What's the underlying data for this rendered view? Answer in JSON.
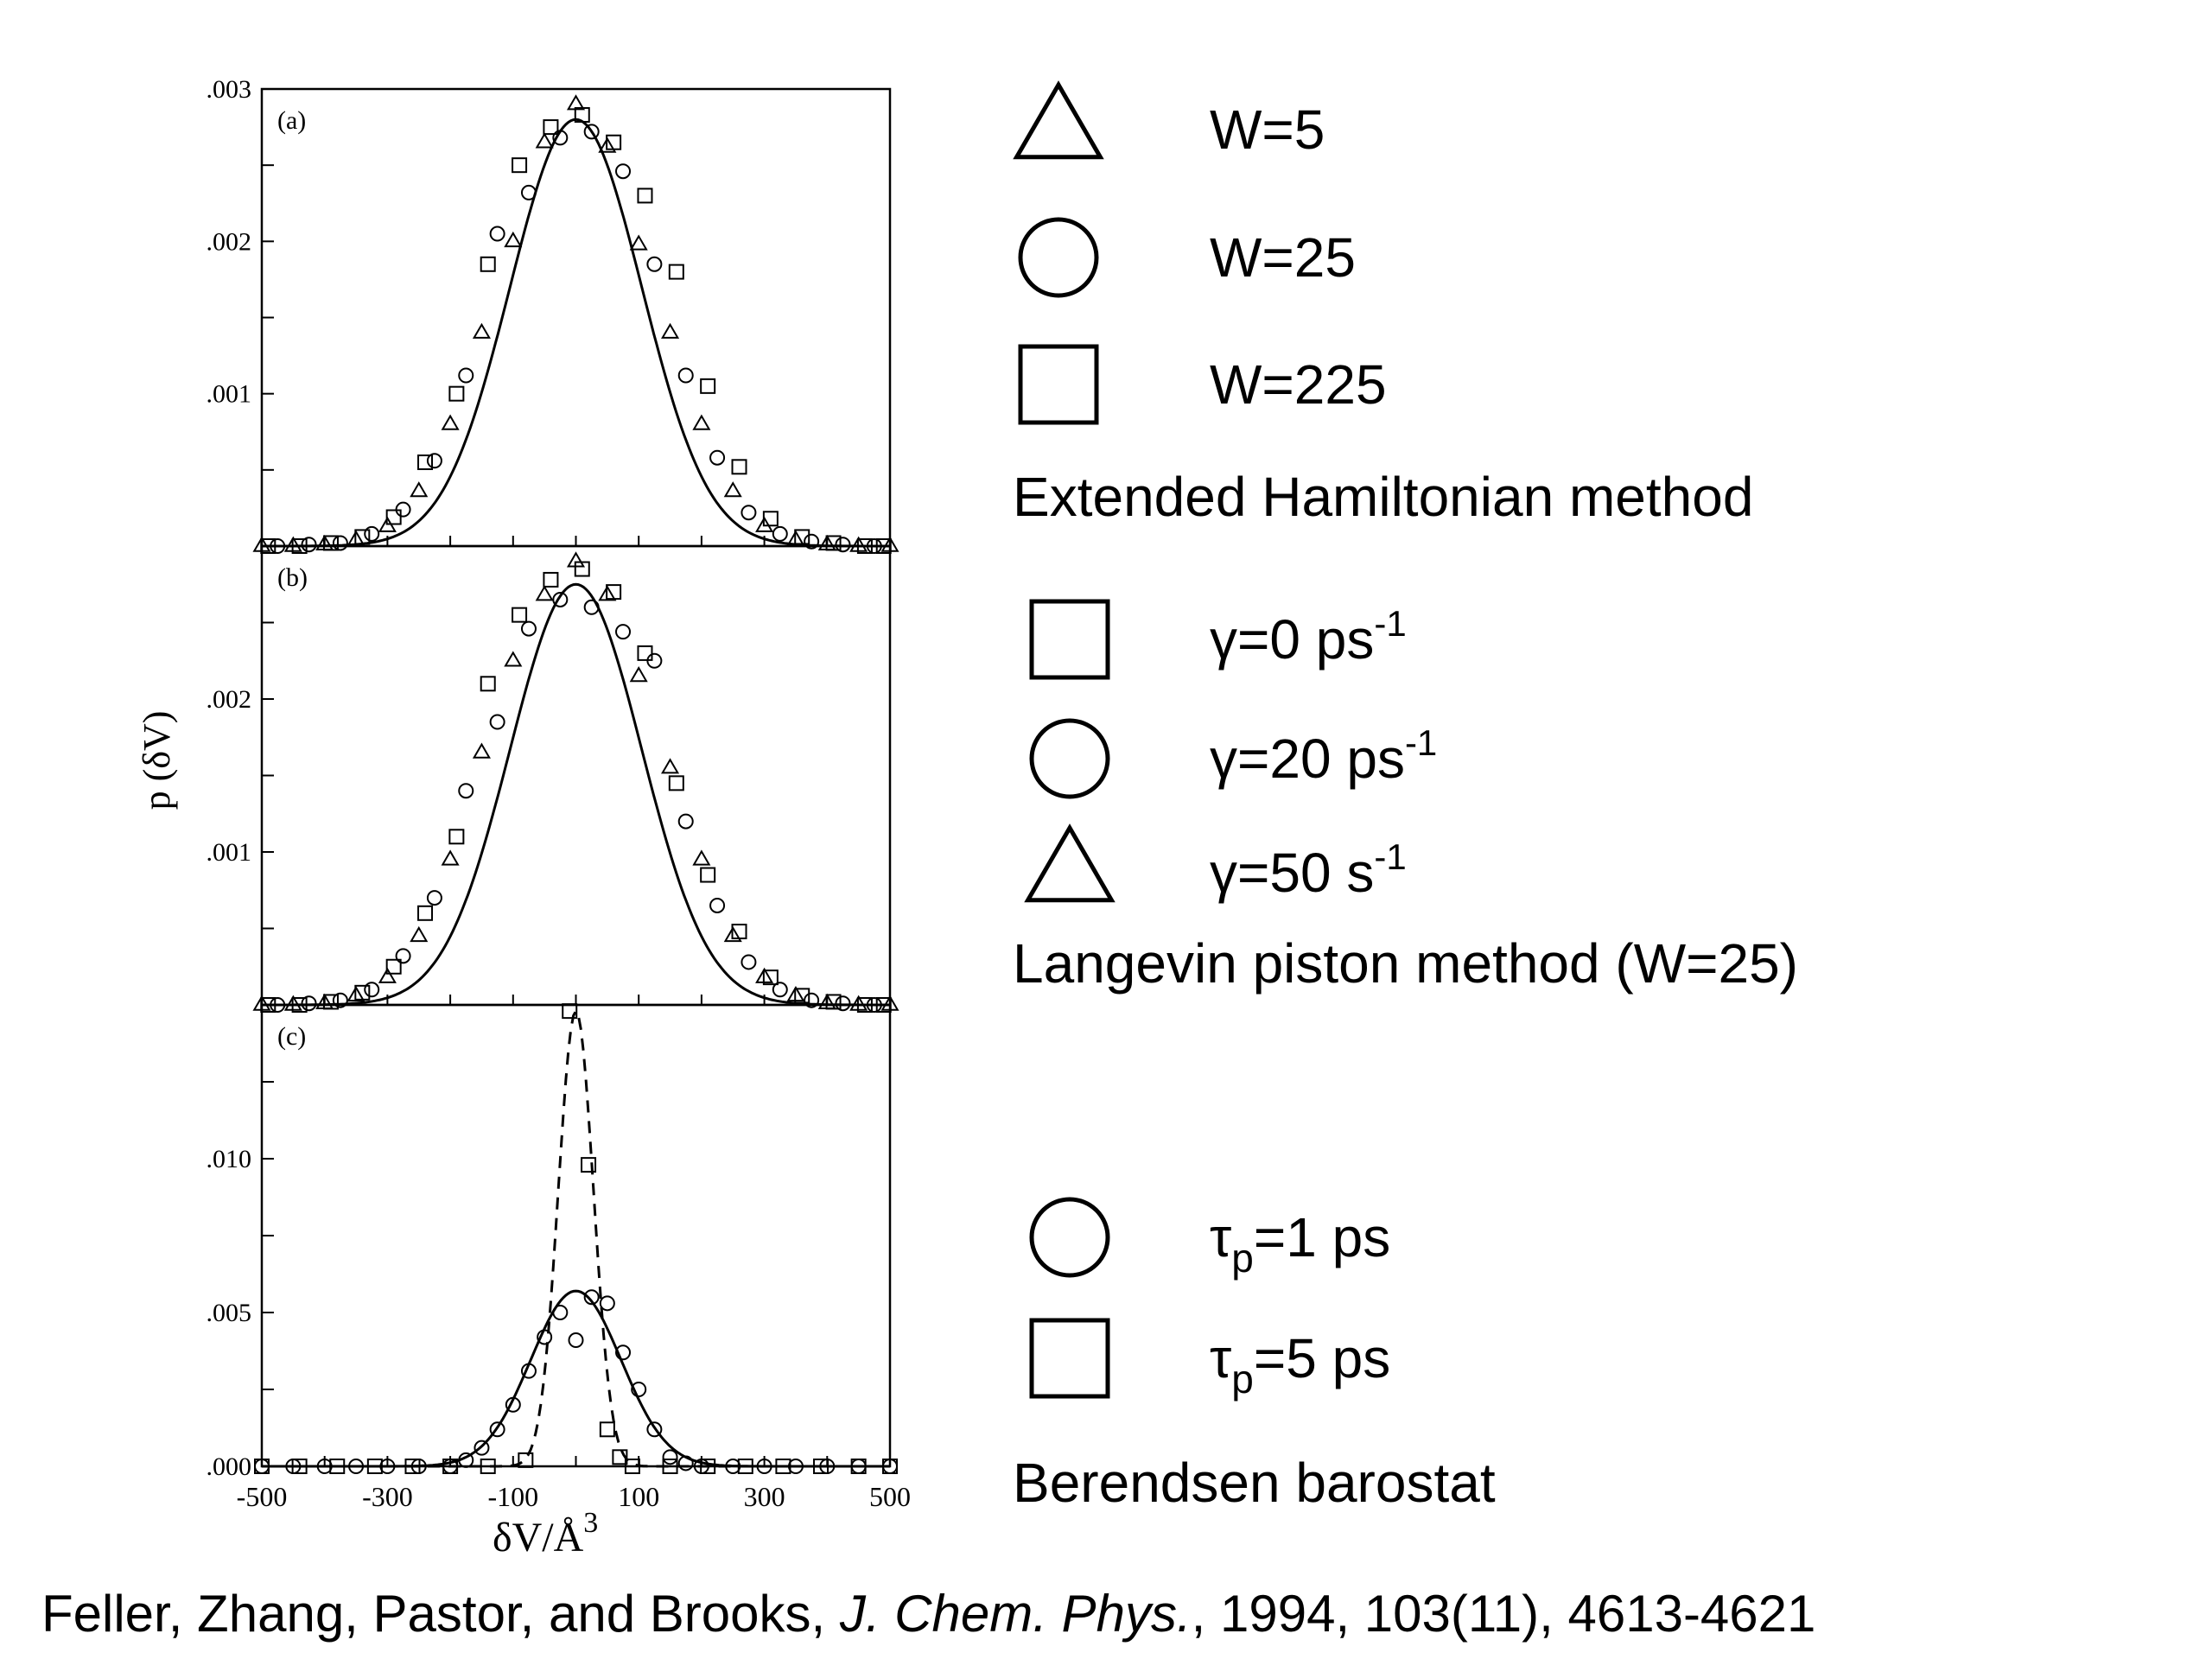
{
  "chart_data": [
    {
      "type": "scatter",
      "panel_label": "(a)",
      "xlim": [
        -500,
        500
      ],
      "ylim": [
        0,
        0.003
      ],
      "ytick_labels": [
        ".001",
        ".002",
        ".003"
      ],
      "curves": [
        {
          "style": "solid",
          "mean": 0,
          "sigma": 105,
          "peak": 0.0028
        }
      ],
      "series": [
        {
          "marker": "triangle",
          "points": [
            [
              -500,
              0
            ],
            [
              -450,
              0
            ],
            [
              -400,
              1e-05
            ],
            [
              -350,
              4e-05
            ],
            [
              -300,
              0.00013
            ],
            [
              -250,
              0.00036
            ],
            [
              -200,
              0.0008
            ],
            [
              -150,
              0.0014
            ],
            [
              -100,
              0.002
            ],
            [
              -50,
              0.00265
            ],
            [
              0,
              0.0029
            ],
            [
              50,
              0.00262
            ],
            [
              100,
              0.00198
            ],
            [
              150,
              0.0014
            ],
            [
              200,
              0.0008
            ],
            [
              250,
              0.00036
            ],
            [
              300,
              0.00013
            ],
            [
              350,
              4e-05
            ],
            [
              400,
              1e-05
            ],
            [
              450,
              0
            ],
            [
              500,
              0
            ]
          ]
        },
        {
          "marker": "circle",
          "points": [
            [
              -475,
              0
            ],
            [
              -425,
              1e-05
            ],
            [
              -375,
              2e-05
            ],
            [
              -325,
              8e-05
            ],
            [
              -275,
              0.00024
            ],
            [
              -225,
              0.00056
            ],
            [
              -175,
              0.00112
            ],
            [
              -125,
              0.00205
            ],
            [
              -75,
              0.00232
            ],
            [
              -25,
              0.00268
            ],
            [
              25,
              0.00272
            ],
            [
              75,
              0.00246
            ],
            [
              125,
              0.00185
            ],
            [
              175,
              0.00112
            ],
            [
              225,
              0.00058
            ],
            [
              275,
              0.00022
            ],
            [
              325,
              8e-05
            ],
            [
              375,
              3e-05
            ],
            [
              425,
              1e-05
            ],
            [
              475,
              0
            ]
          ]
        },
        {
          "marker": "square",
          "points": [
            [
              -490,
              0
            ],
            [
              -440,
              0
            ],
            [
              -390,
              2e-05
            ],
            [
              -340,
              6e-05
            ],
            [
              -290,
              0.00019
            ],
            [
              -240,
              0.00055
            ],
            [
              -190,
              0.001
            ],
            [
              -140,
              0.00185
            ],
            [
              -90,
              0.0025
            ],
            [
              -40,
              0.00275
            ],
            [
              10,
              0.00283
            ],
            [
              60,
              0.00265
            ],
            [
              110,
              0.0023
            ],
            [
              160,
              0.0018
            ],
            [
              210,
              0.00105
            ],
            [
              260,
              0.00052
            ],
            [
              310,
              0.00018
            ],
            [
              360,
              6e-05
            ],
            [
              410,
              2e-05
            ],
            [
              460,
              0
            ],
            [
              490,
              0
            ]
          ]
        }
      ]
    },
    {
      "type": "scatter",
      "panel_label": "(b)",
      "xlim": [
        -500,
        500
      ],
      "ylim": [
        0,
        0.003
      ],
      "ytick_labels": [
        ".001",
        ".002"
      ],
      "curves": [
        {
          "style": "solid",
          "mean": 0,
          "sigma": 105,
          "peak": 0.00275
        }
      ],
      "series": [
        {
          "marker": "square",
          "points": [
            [
              -490,
              0
            ],
            [
              -440,
              0
            ],
            [
              -390,
              2e-05
            ],
            [
              -340,
              8e-05
            ],
            [
              -290,
              0.00025
            ],
            [
              -240,
              0.0006
            ],
            [
              -190,
              0.0011
            ],
            [
              -140,
              0.0021
            ],
            [
              -90,
              0.00255
            ],
            [
              -40,
              0.00278
            ],
            [
              10,
              0.00285
            ],
            [
              60,
              0.0027
            ],
            [
              110,
              0.0023
            ],
            [
              160,
              0.00145
            ],
            [
              210,
              0.00085
            ],
            [
              260,
              0.00048
            ],
            [
              310,
              0.00018
            ],
            [
              360,
              6e-05
            ],
            [
              410,
              2e-05
            ],
            [
              460,
              0
            ],
            [
              490,
              0
            ]
          ]
        },
        {
          "marker": "circle",
          "points": [
            [
              -475,
              0
            ],
            [
              -425,
              1e-05
            ],
            [
              -375,
              3e-05
            ],
            [
              -325,
              0.0001
            ],
            [
              -275,
              0.00032
            ],
            [
              -225,
              0.0007
            ],
            [
              -175,
              0.0014
            ],
            [
              -125,
              0.00185
            ],
            [
              -75,
              0.00246
            ],
            [
              -25,
              0.00265
            ],
            [
              25,
              0.0026
            ],
            [
              75,
              0.00244
            ],
            [
              125,
              0.00225
            ],
            [
              175,
              0.0012
            ],
            [
              225,
              0.00065
            ],
            [
              275,
              0.00028
            ],
            [
              325,
              0.0001
            ],
            [
              375,
              3e-05
            ],
            [
              425,
              1e-05
            ],
            [
              475,
              0
            ]
          ]
        },
        {
          "marker": "triangle",
          "points": [
            [
              -500,
              0
            ],
            [
              -450,
              0
            ],
            [
              -400,
              1e-05
            ],
            [
              -350,
              6e-05
            ],
            [
              -300,
              0.00018
            ],
            [
              -250,
              0.00045
            ],
            [
              -200,
              0.00095
            ],
            [
              -150,
              0.00165
            ],
            [
              -100,
              0.00225
            ],
            [
              -50,
              0.00268
            ],
            [
              0,
              0.0029
            ],
            [
              50,
              0.00268
            ],
            [
              100,
              0.00215
            ],
            [
              150,
              0.00155
            ],
            [
              200,
              0.00095
            ],
            [
              250,
              0.00045
            ],
            [
              300,
              0.00018
            ],
            [
              350,
              6e-05
            ],
            [
              400,
              1e-05
            ],
            [
              450,
              0
            ],
            [
              500,
              0
            ]
          ]
        }
      ]
    },
    {
      "type": "scatter",
      "panel_label": "(c)",
      "xlim": [
        -500,
        500
      ],
      "ylim": [
        0,
        0.015
      ],
      "ytick_labels": [
        ".000",
        ".005",
        ".010"
      ],
      "xtick_labels": [
        "-500",
        "-300",
        "-100",
        "100",
        "300",
        "500"
      ],
      "xlabel": "δV/Å",
      "xlabel_sup": "3",
      "curves": [
        {
          "style": "solid",
          "mean": 0,
          "sigma": 72,
          "peak": 0.0057
        },
        {
          "style": "dashed",
          "mean": 0,
          "sigma": 28,
          "peak": 0.0148
        }
      ],
      "series": [
        {
          "marker": "circle",
          "points": [
            [
              -500,
              0
            ],
            [
              -450,
              0
            ],
            [
              -400,
              0
            ],
            [
              -350,
              0
            ],
            [
              -300,
              0
            ],
            [
              -250,
              0
            ],
            [
              -200,
              0
            ],
            [
              -175,
              0.0002
            ],
            [
              -150,
              0.0006
            ],
            [
              -125,
              0.0012
            ],
            [
              -100,
              0.002
            ],
            [
              -75,
              0.0031
            ],
            [
              -50,
              0.0042
            ],
            [
              -25,
              0.005
            ],
            [
              0,
              0.0041
            ],
            [
              25,
              0.0055
            ],
            [
              50,
              0.0053
            ],
            [
              75,
              0.0037
            ],
            [
              100,
              0.0025
            ],
            [
              125,
              0.0012
            ],
            [
              150,
              0.0003
            ],
            [
              175,
              0.0001
            ],
            [
              200,
              0
            ],
            [
              250,
              0
            ],
            [
              300,
              0
            ],
            [
              350,
              0
            ],
            [
              400,
              0
            ],
            [
              450,
              0
            ],
            [
              500,
              0
            ]
          ]
        },
        {
          "marker": "square",
          "points": [
            [
              -500,
              0
            ],
            [
              -440,
              0
            ],
            [
              -380,
              0
            ],
            [
              -320,
              0
            ],
            [
              -260,
              0
            ],
            [
              -200,
              0
            ],
            [
              -140,
              0
            ],
            [
              -80,
              0.0002
            ],
            [
              -10,
              0.0148
            ],
            [
              20,
              0.0098
            ],
            [
              50,
              0.0012
            ],
            [
              70,
              0.0003
            ],
            [
              90,
              0
            ],
            [
              150,
              0
            ],
            [
              210,
              0
            ],
            [
              270,
              0
            ],
            [
              330,
              0
            ],
            [
              390,
              0
            ],
            [
              450,
              0
            ],
            [
              500,
              0
            ]
          ]
        }
      ]
    }
  ],
  "ylabel": {
    "text": "p (δV)"
  },
  "legend": {
    "groups": [
      {
        "title": "Extended Hamiltonian method",
        "items": [
          {
            "marker": "triangle",
            "label": "W=5"
          },
          {
            "marker": "circle",
            "label": "W=25"
          },
          {
            "marker": "square",
            "label": "W=225"
          }
        ]
      },
      {
        "title": "Langevin piston method (W=25)",
        "items": [
          {
            "marker": "square",
            "label": "γ=0 ps",
            "sup": "-1"
          },
          {
            "marker": "circle",
            "label": "γ=20 ps",
            "sup": "-1"
          },
          {
            "marker": "triangle",
            "label": "γ=50 s",
            "sup": "-1"
          }
        ]
      },
      {
        "title": "Berendsen barostat",
        "items": [
          {
            "marker": "circle",
            "base": "τ",
            "sub": "p",
            "rest": "=1 ps"
          },
          {
            "marker": "square",
            "base": "τ",
            "sub": "p",
            "rest": "=5 ps"
          }
        ]
      }
    ]
  },
  "caption": {
    "authors": "Feller, Zhang, Pastor, and Brooks, ",
    "journal": "J. Chem. Phys.",
    "details": ", 1994, 103(11), 4613-4621"
  }
}
